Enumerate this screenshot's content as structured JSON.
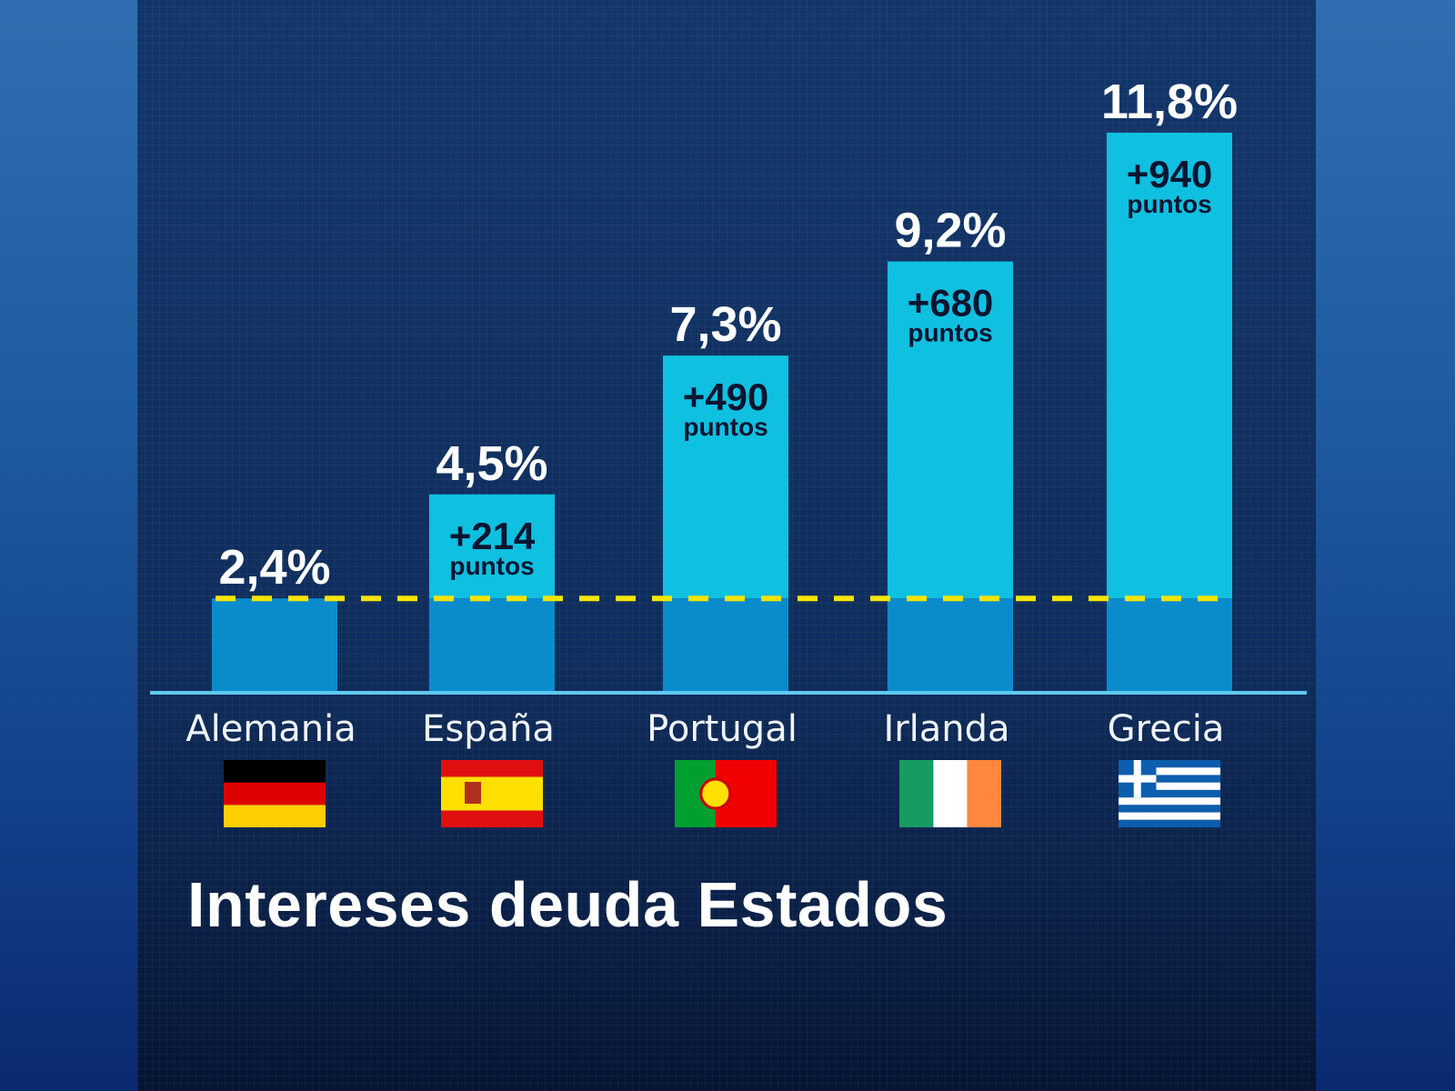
{
  "chart_data": {
    "type": "bar",
    "title": "Intereses deuda Estados",
    "categories": [
      "Alemania",
      "España",
      "Portugal",
      "Irlanda",
      "Grecia"
    ],
    "values": [
      2.4,
      4.5,
      7.3,
      9.2,
      11.8
    ],
    "value_labels": [
      "2,4%",
      "4,5%",
      "7,3%",
      "9,2%",
      "11,8%"
    ],
    "spread_labels": [
      "",
      "+214",
      "+490",
      "+680",
      "+940"
    ],
    "spread_unit": "puntos",
    "reference_line": {
      "value": 2.4,
      "style": "dashed",
      "color": "#f5e400"
    },
    "flags": [
      "germany-flag",
      "spain-flag",
      "portugal-flag",
      "ireland-flag",
      "greece-flag"
    ],
    "colors": {
      "bar_top": "#0fc0e0",
      "bar_base": "#0a8ccc",
      "axis": "#5fc8f0"
    },
    "grid": false
  }
}
